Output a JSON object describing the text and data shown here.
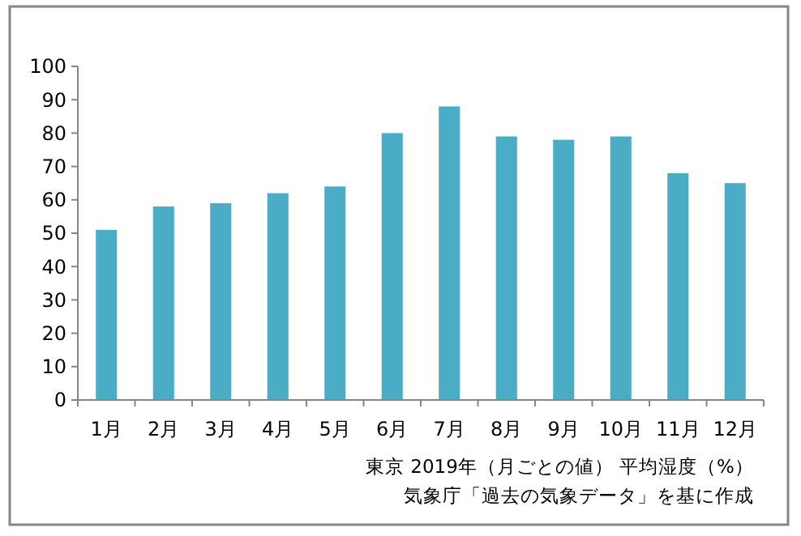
{
  "chart_data": {
    "type": "bar",
    "categories": [
      "1月",
      "2月",
      "3月",
      "4月",
      "5月",
      "6月",
      "7月",
      "8月",
      "9月",
      "10月",
      "11月",
      "12月"
    ],
    "values": [
      51,
      58,
      59,
      62,
      64,
      80,
      88,
      79,
      78,
      79,
      68,
      65
    ],
    "color": "#4bacc6",
    "ylim": [
      0,
      100
    ],
    "yticks": [
      0,
      10,
      20,
      30,
      40,
      50,
      60,
      70,
      80,
      90,
      100
    ],
    "grid": false,
    "annotations": [
      "東京  2019年（月ごとの値） 平均湿度（%）",
      "気象庁「過去の気象データ」を基に作成"
    ]
  }
}
